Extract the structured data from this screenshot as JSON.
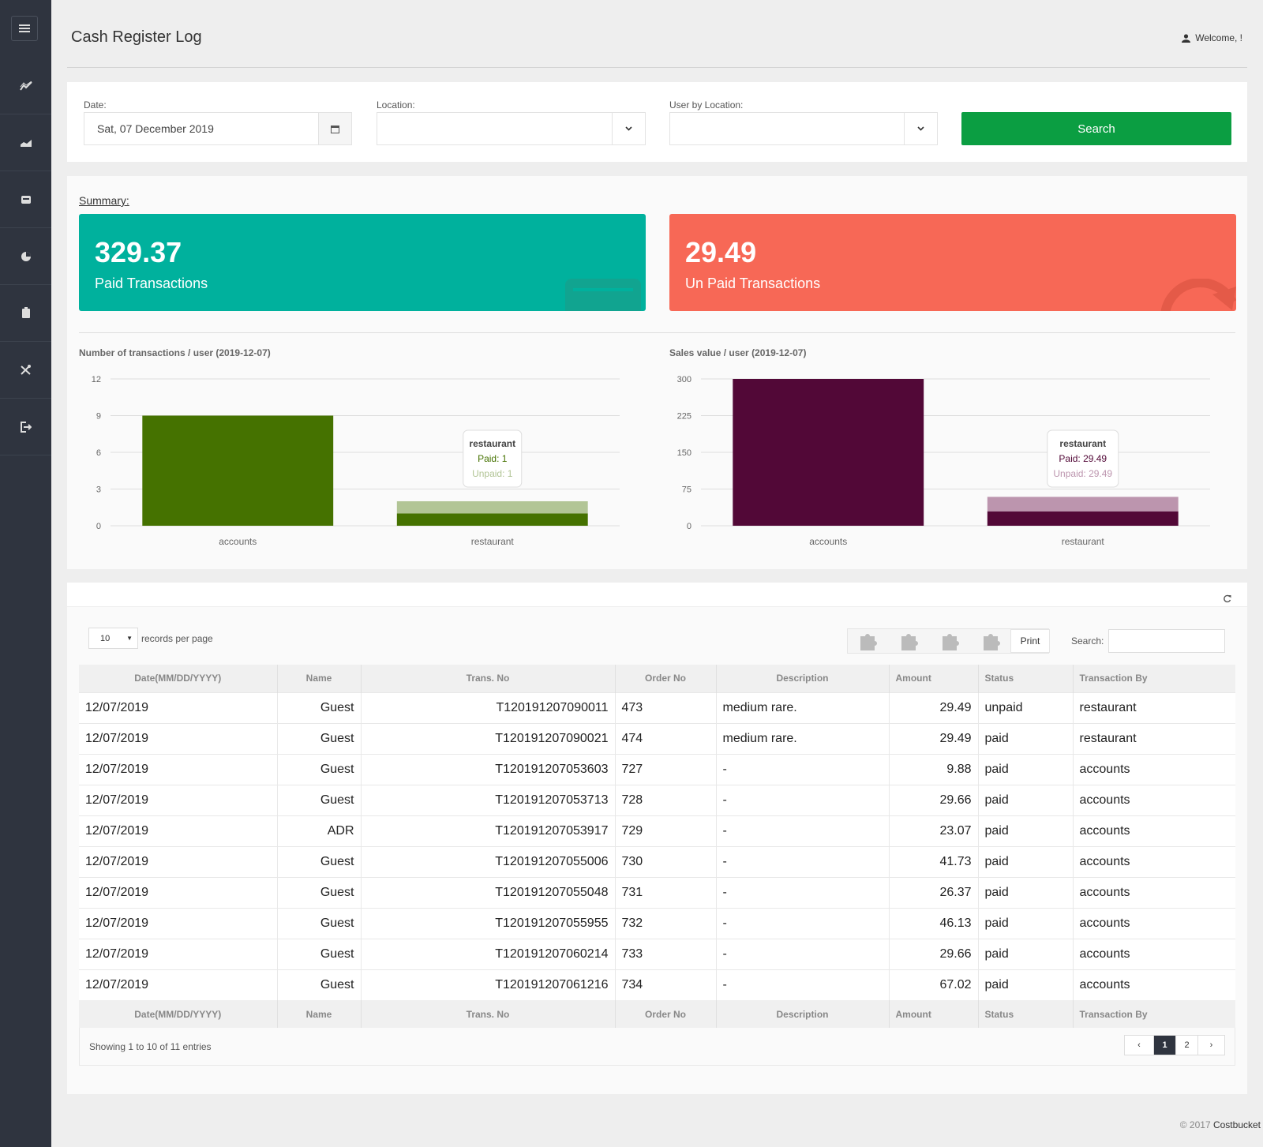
{
  "header": {
    "title": "Cash Register Log",
    "welcome": "Welcome, !"
  },
  "filters": {
    "date_label": "Date:",
    "date_value": "Sat, 07 December 2019",
    "location_label": "Location:",
    "location_value": "",
    "user_label": "User by Location:",
    "user_value": "",
    "search_label": "Search"
  },
  "summary": {
    "link": "Summary:",
    "paid": {
      "value": "329.37",
      "label": "Paid Transactions",
      "color": "#00b19d"
    },
    "unpaid": {
      "value": "29.49",
      "label": "Un Paid Transactions",
      "color": "#f76856"
    }
  },
  "chart_data": [
    {
      "type": "bar",
      "title": "Number of transactions / user (2019-12-07)",
      "categories": [
        "accounts",
        "restaurant"
      ],
      "series": [
        {
          "name": "Paid",
          "values": [
            9,
            1
          ],
          "color": "#457200"
        },
        {
          "name": "Unpaid",
          "values": [
            0,
            1
          ],
          "color": "#b2c596"
        }
      ],
      "stacked": true,
      "ylim": [
        0,
        12
      ],
      "yticks": [
        "0",
        "3",
        "6",
        "9",
        "12"
      ],
      "grid": true,
      "tooltip": {
        "title": "restaurant",
        "paid": "Paid: 1",
        "unpaid": "Unpaid: 1"
      }
    },
    {
      "type": "bar",
      "title": "Sales value / user (2019-12-07)",
      "categories": [
        "accounts",
        "restaurant"
      ],
      "series": [
        {
          "name": "Paid",
          "values": [
            300,
            29.49
          ],
          "color": "#520837"
        },
        {
          "name": "Unpaid",
          "values": [
            0,
            29.49
          ],
          "color": "#bc95ae"
        }
      ],
      "stacked": true,
      "ylim": [
        0,
        300
      ],
      "yticks": [
        "0",
        "75",
        "150",
        "225",
        "300"
      ],
      "grid": true,
      "tooltip": {
        "title": "restaurant",
        "paid": "Paid: 29.49",
        "unpaid": "Unpaid: 29.49"
      }
    }
  ],
  "table_controls": {
    "page_size": "10",
    "records_label": "records per page",
    "print_label": "Print",
    "search_label": "Search:"
  },
  "table": {
    "columns": [
      "Date(MM/DD/YYYY)",
      "Name",
      "Trans. No",
      "Order No",
      "Description",
      "Amount",
      "Status",
      "Transaction By"
    ],
    "rows": [
      [
        "12/07/2019",
        "Guest",
        "T120191207090011",
        "473",
        "medium rare.",
        "29.49",
        "unpaid",
        "restaurant"
      ],
      [
        "12/07/2019",
        "Guest",
        "T120191207090021",
        "474",
        "medium rare.",
        "29.49",
        "paid",
        "restaurant"
      ],
      [
        "12/07/2019",
        "Guest",
        "T120191207053603",
        "727",
        "-",
        "9.88",
        "paid",
        "accounts"
      ],
      [
        "12/07/2019",
        "Guest",
        "T120191207053713",
        "728",
        "-",
        "29.66",
        "paid",
        "accounts"
      ],
      [
        "12/07/2019",
        "ADR",
        "T120191207053917",
        "729",
        "-",
        "23.07",
        "paid",
        "accounts"
      ],
      [
        "12/07/2019",
        "Guest",
        "T120191207055006",
        "730",
        "-",
        "41.73",
        "paid",
        "accounts"
      ],
      [
        "12/07/2019",
        "Guest",
        "T120191207055048",
        "731",
        "-",
        "26.37",
        "paid",
        "accounts"
      ],
      [
        "12/07/2019",
        "Guest",
        "T120191207055955",
        "732",
        "-",
        "46.13",
        "paid",
        "accounts"
      ],
      [
        "12/07/2019",
        "Guest",
        "T120191207060214",
        "733",
        "-",
        "29.66",
        "paid",
        "accounts"
      ],
      [
        "12/07/2019",
        "Guest",
        "T120191207061216",
        "734",
        "-",
        "67.02",
        "paid",
        "accounts"
      ]
    ],
    "info": "Showing 1 to 10 of 11 entries",
    "pages": {
      "prev": "‹",
      "p1": "1",
      "p2": "2",
      "next": "›"
    }
  },
  "footer": {
    "copyright": "© 2017",
    "brand": "Costbucket"
  },
  "icons": {
    "sidebar": [
      "menu-icon",
      "line-chart-icon",
      "area-chart-icon",
      "inbox-icon",
      "pie-chart-icon",
      "clipboard-icon",
      "tools-icon",
      "sign-out-icon"
    ]
  }
}
